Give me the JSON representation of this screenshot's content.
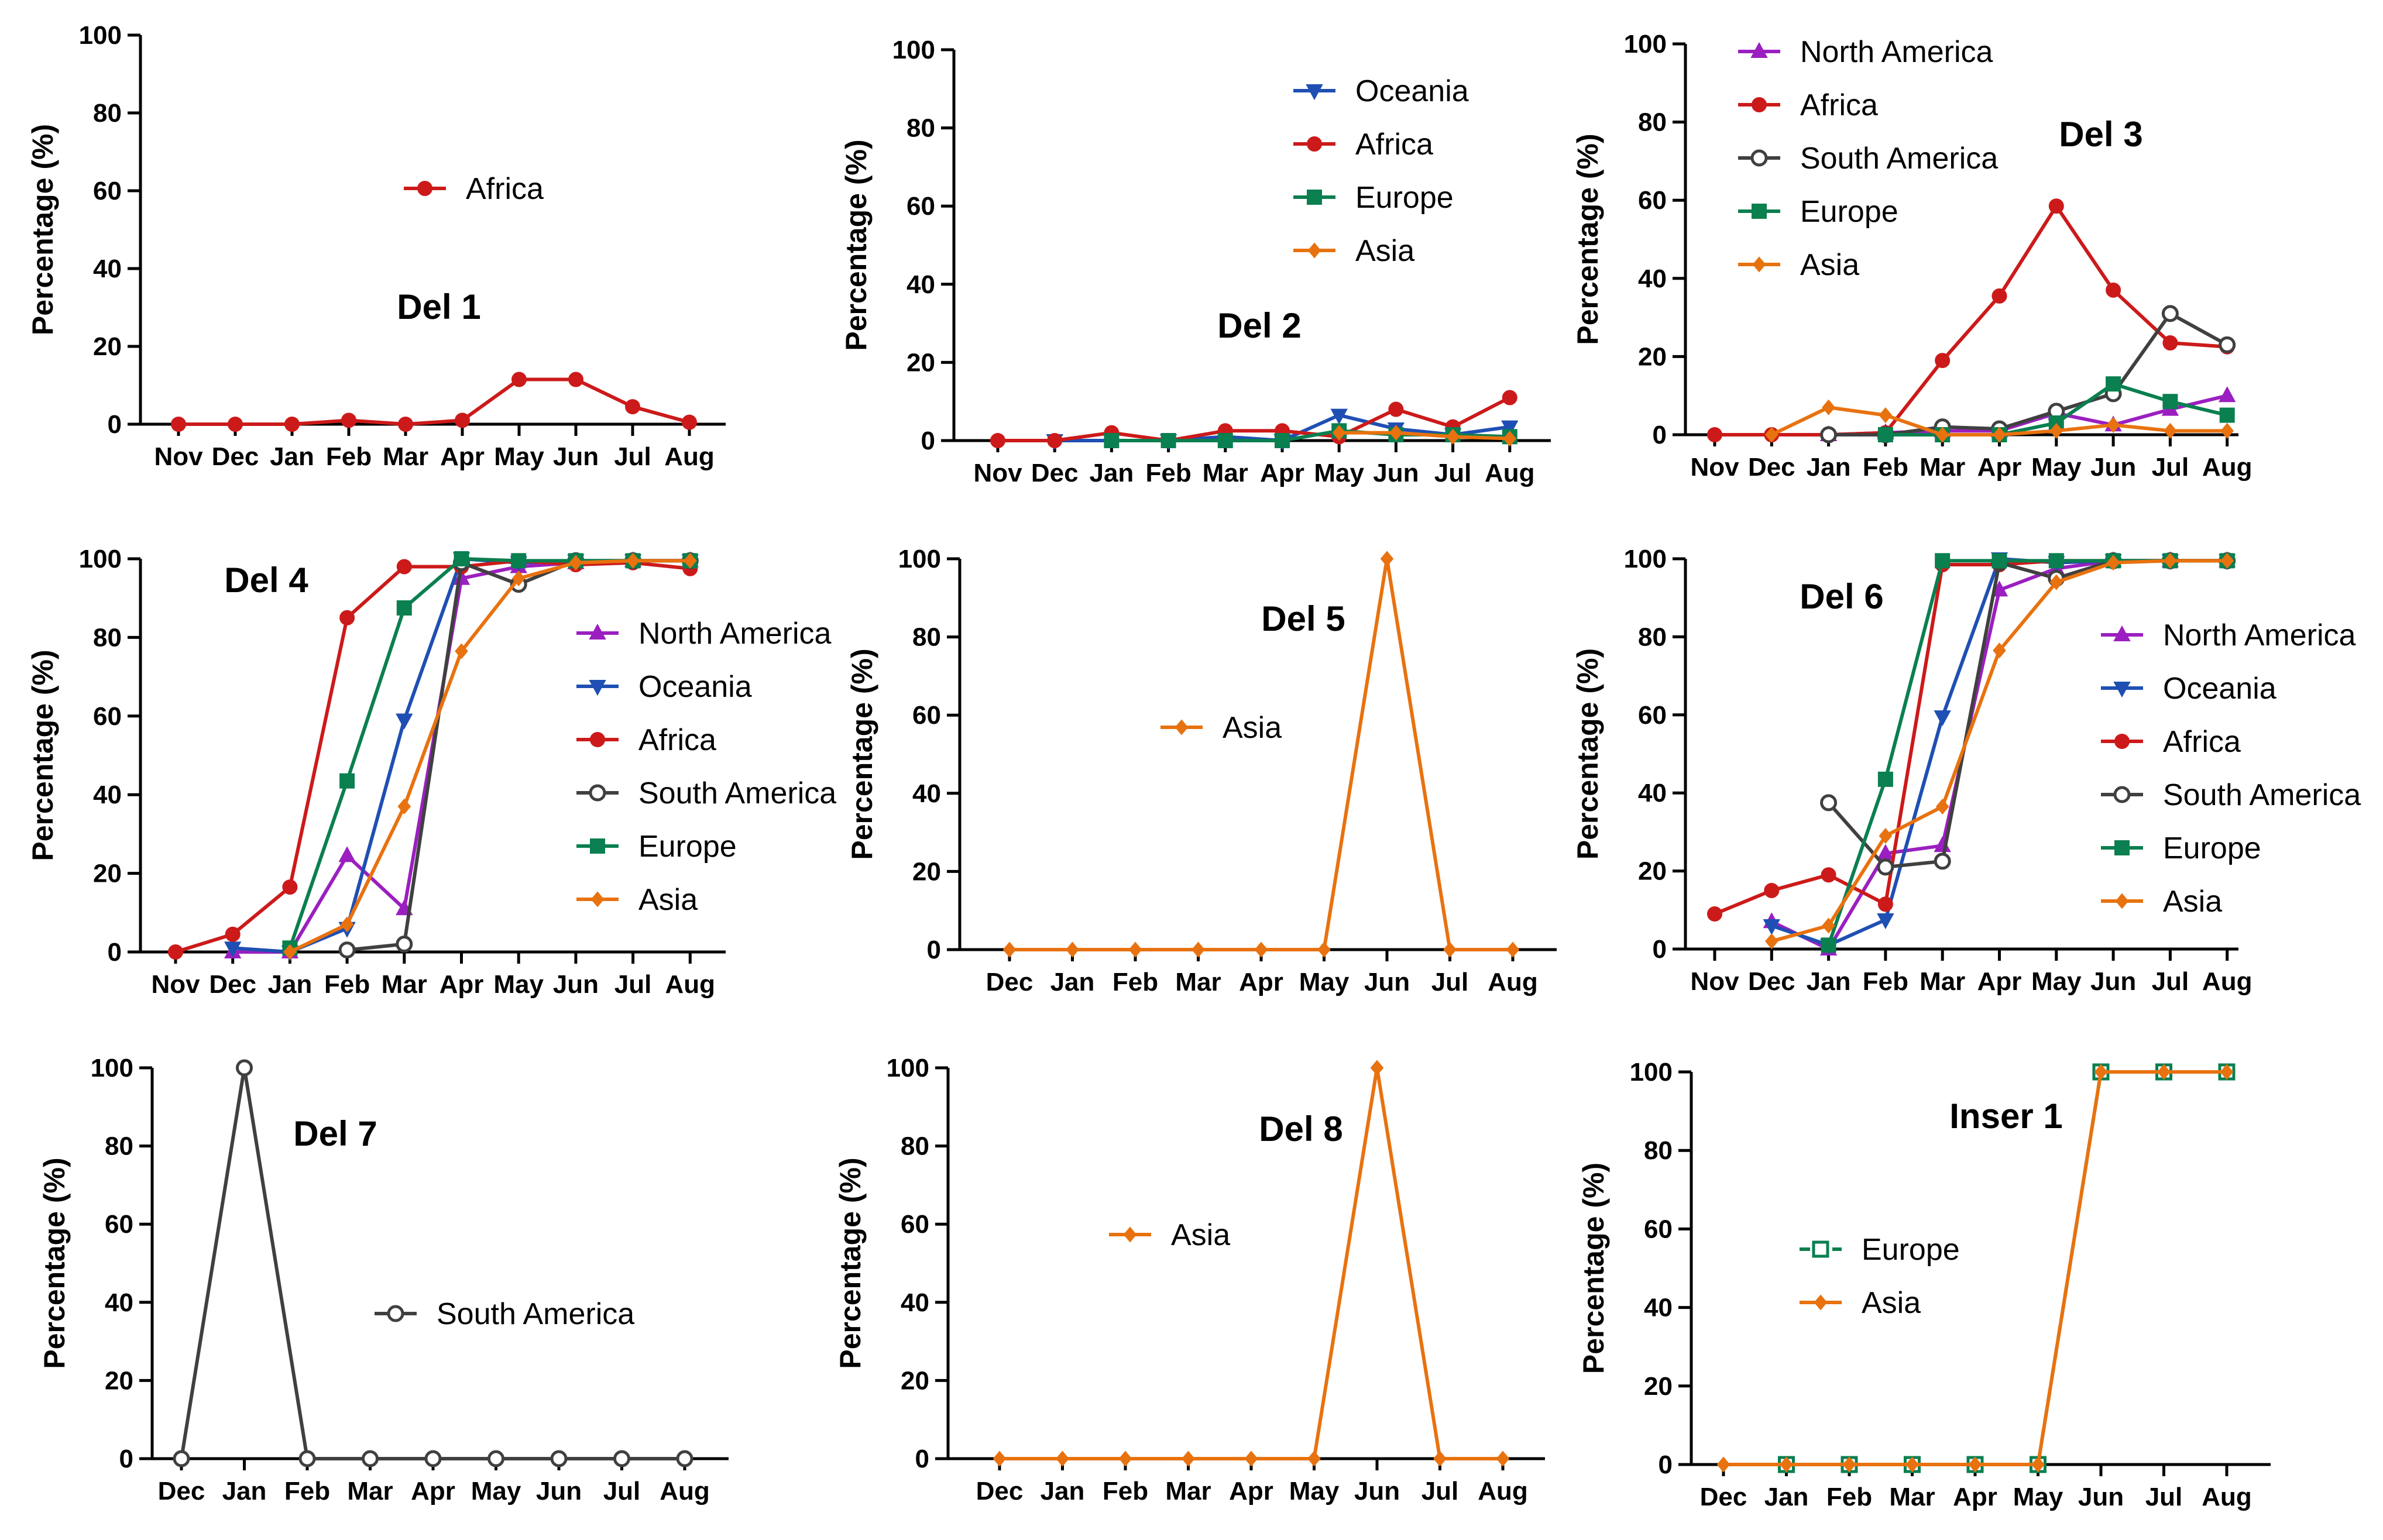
{
  "colors": {
    "North America": "#9b1fc0",
    "Oceania": "#1f4fb3",
    "Africa": "#cc1a1a",
    "South America": "#404040",
    "Europe": "#0a7f4f",
    "Asia": "#e8720f"
  },
  "chart_data": [
    {
      "type": "line",
      "title": "Del 1",
      "ylabel": "Percentage (%)",
      "ylim": [
        0,
        100
      ],
      "yticks": [
        "0",
        "20",
        "40",
        "60",
        "80",
        "100"
      ],
      "categories": [
        "Nov",
        "Dec",
        "Jan",
        "Feb",
        "Mar",
        "Apr",
        "May",
        "Jun",
        "Jul",
        "Aug"
      ],
      "series": [
        {
          "name": "Africa",
          "marker": "circle",
          "values": [
            0,
            0,
            0,
            1,
            0,
            1,
            11.5,
            11.5,
            4.5,
            0.5
          ]
        }
      ]
    },
    {
      "type": "line",
      "title": "Del 2",
      "ylabel": "Percentage (%)",
      "ylim": [
        0,
        100
      ],
      "yticks": [
        "0",
        "20",
        "40",
        "60",
        "80",
        "100"
      ],
      "categories": [
        "Nov",
        "Dec",
        "Jan",
        "Feb",
        "Mar",
        "Apr",
        "May",
        "Jun",
        "Jul",
        "Aug"
      ],
      "series": [
        {
          "name": "Oceania",
          "marker": "triangle-down",
          "values": [
            null,
            0,
            null,
            0,
            1,
            0,
            6.5,
            3,
            1.5,
            3.5
          ]
        },
        {
          "name": "Africa",
          "marker": "circle",
          "values": [
            0,
            0,
            2,
            0,
            2.5,
            2.5,
            1,
            8,
            3.5,
            11
          ]
        },
        {
          "name": "Europe",
          "marker": "square",
          "values": [
            null,
            null,
            0,
            0,
            0,
            0,
            2.5,
            1.5,
            1.5,
            1
          ]
        },
        {
          "name": "Asia",
          "marker": "diamond",
          "values": [
            null,
            null,
            null,
            null,
            null,
            null,
            2,
            2,
            1,
            0.5
          ]
        }
      ]
    },
    {
      "type": "line",
      "title": "Del 3",
      "ylabel": "Percentage (%)",
      "ylim": [
        0,
        100
      ],
      "yticks": [
        "0",
        "20",
        "40",
        "60",
        "80",
        "100"
      ],
      "categories": [
        "Nov",
        "Dec",
        "Jan",
        "Feb",
        "Mar",
        "Apr",
        "May",
        "Jun",
        "Jul",
        "Aug"
      ],
      "series": [
        {
          "name": "North America",
          "marker": "triangle-up",
          "values": [
            null,
            null,
            0,
            0.5,
            1,
            1,
            5.5,
            2.5,
            6.5,
            10
          ]
        },
        {
          "name": "Africa",
          "marker": "circle",
          "values": [
            0,
            0,
            0,
            0.5,
            19,
            35.5,
            58.5,
            37,
            23.5,
            22.5
          ]
        },
        {
          "name": "South America",
          "marker": "circle-open",
          "values": [
            null,
            null,
            0,
            0,
            2,
            1.5,
            6,
            10.5,
            31,
            23
          ]
        },
        {
          "name": "Europe",
          "marker": "square",
          "values": [
            null,
            null,
            null,
            0,
            0,
            0,
            3,
            13,
            8.5,
            5
          ]
        },
        {
          "name": "Asia",
          "marker": "diamond",
          "values": [
            null,
            0,
            7,
            5,
            0,
            0,
            1,
            2.5,
            1,
            1
          ]
        }
      ]
    },
    {
      "type": "line",
      "title": "Del 4",
      "ylabel": "Percentage (%)",
      "ylim": [
        0,
        100
      ],
      "yticks": [
        "0",
        "20",
        "40",
        "60",
        "80",
        "100"
      ],
      "categories": [
        "Nov",
        "Dec",
        "Jan",
        "Feb",
        "Mar",
        "Apr",
        "May",
        "Jun",
        "Jul",
        "Aug"
      ],
      "series": [
        {
          "name": "North America",
          "marker": "triangle-up",
          "values": [
            null,
            0,
            0,
            24.5,
            11,
            95,
            98,
            99,
            99.5,
            99.5
          ]
        },
        {
          "name": "Oceania",
          "marker": "triangle-down",
          "values": [
            null,
            1,
            0,
            6,
            59,
            100,
            99,
            99.5,
            99.5,
            99.5
          ]
        },
        {
          "name": "Africa",
          "marker": "circle",
          "values": [
            0,
            4.5,
            16.5,
            85,
            98,
            98,
            99.5,
            98.5,
            99,
            97.5
          ]
        },
        {
          "name": "South America",
          "marker": "circle-open",
          "values": [
            null,
            null,
            null,
            0.5,
            2,
            99,
            93.5,
            99.5,
            99.5,
            99.5
          ]
        },
        {
          "name": "Europe",
          "marker": "square",
          "values": [
            null,
            null,
            1,
            43.5,
            87.5,
            100,
            99.5,
            99.5,
            99.5,
            99.5
          ]
        },
        {
          "name": "Asia",
          "marker": "diamond",
          "values": [
            null,
            null,
            0,
            7,
            37,
            76.5,
            95,
            99,
            99.5,
            99.5
          ]
        }
      ]
    },
    {
      "type": "line",
      "title": "Del 5",
      "ylabel": "Percentage (%)",
      "ylim": [
        0,
        100
      ],
      "yticks": [
        "0",
        "20",
        "40",
        "60",
        "80",
        "100"
      ],
      "categories": [
        "Dec",
        "Jan",
        "Feb",
        "Mar",
        "Apr",
        "May",
        "Jun",
        "Jul",
        "Aug"
      ],
      "series": [
        {
          "name": "Asia",
          "marker": "diamond",
          "values": [
            0,
            0,
            0,
            0,
            0,
            0,
            100,
            0,
            0
          ]
        }
      ]
    },
    {
      "type": "line",
      "title": "Del 6",
      "ylabel": "Percentage (%)",
      "ylim": [
        0,
        100
      ],
      "yticks": [
        "0",
        "20",
        "40",
        "60",
        "80",
        "100"
      ],
      "categories": [
        "Nov",
        "Dec",
        "Jan",
        "Feb",
        "Mar",
        "Apr",
        "May",
        "Jun",
        "Jul",
        "Aug"
      ],
      "series": [
        {
          "name": "North America",
          "marker": "triangle-up",
          "values": [
            null,
            7,
            0,
            24.5,
            26.5,
            92,
            97.5,
            99.5,
            99.5,
            99.5
          ]
        },
        {
          "name": "Oceania",
          "marker": "triangle-down",
          "values": [
            null,
            6,
            1,
            7.5,
            59.5,
            100,
            99,
            99.5,
            99.5,
            99.5
          ]
        },
        {
          "name": "Africa",
          "marker": "circle",
          "values": [
            9,
            15,
            19,
            11.5,
            98.5,
            98.5,
            99.5,
            99.5,
            99.5,
            99.5
          ]
        },
        {
          "name": "South America",
          "marker": "circle-open",
          "values": [
            null,
            null,
            37.5,
            21,
            22.5,
            99,
            95,
            99.5,
            99.5,
            99.5
          ]
        },
        {
          "name": "Europe",
          "marker": "square",
          "values": [
            null,
            null,
            1,
            43.5,
            99.5,
            99.5,
            99.5,
            99.5,
            99.5,
            99.5
          ]
        },
        {
          "name": "Asia",
          "marker": "diamond",
          "values": [
            null,
            2,
            6,
            29,
            36.5,
            76.5,
            94,
            99,
            99.5,
            99.5
          ]
        }
      ]
    },
    {
      "type": "line",
      "title": "Del 7",
      "ylabel": "Percentage (%)",
      "ylim": [
        0,
        100
      ],
      "yticks": [
        "0",
        "20",
        "40",
        "60",
        "80",
        "100"
      ],
      "categories": [
        "Dec",
        "Jan",
        "Feb",
        "Mar",
        "Apr",
        "May",
        "Jun",
        "Jul",
        "Aug"
      ],
      "series": [
        {
          "name": "South America",
          "marker": "circle-open",
          "values": [
            0,
            100,
            0,
            0,
            0,
            0,
            0,
            0,
            0
          ]
        }
      ]
    },
    {
      "type": "line",
      "title": "Del 8",
      "ylabel": "Percentage (%)",
      "ylim": [
        0,
        100
      ],
      "yticks": [
        "0",
        "20",
        "40",
        "60",
        "80",
        "100"
      ],
      "categories": [
        "Dec",
        "Jan",
        "Feb",
        "Mar",
        "Apr",
        "May",
        "Jun",
        "Jul",
        "Aug"
      ],
      "series": [
        {
          "name": "Asia",
          "marker": "diamond",
          "values": [
            0,
            0,
            0,
            0,
            0,
            0,
            100,
            0,
            0
          ]
        }
      ]
    },
    {
      "type": "line",
      "title": "Inser 1",
      "ylabel": "Percentage (%)",
      "ylim": [
        0,
        100
      ],
      "yticks": [
        "0",
        "20",
        "40",
        "60",
        "80",
        "100"
      ],
      "categories": [
        "Dec",
        "Jan",
        "Feb",
        "Mar",
        "Apr",
        "May",
        "Jun",
        "Jul",
        "Aug"
      ],
      "series": [
        {
          "name": "Europe",
          "marker": "square-open",
          "dashed": true,
          "values": [
            null,
            0,
            0,
            0,
            0,
            0,
            100,
            100,
            100
          ]
        },
        {
          "name": "Asia",
          "marker": "diamond",
          "values": [
            0,
            0,
            0,
            0,
            0,
            0,
            100,
            100,
            100
          ]
        }
      ]
    }
  ]
}
